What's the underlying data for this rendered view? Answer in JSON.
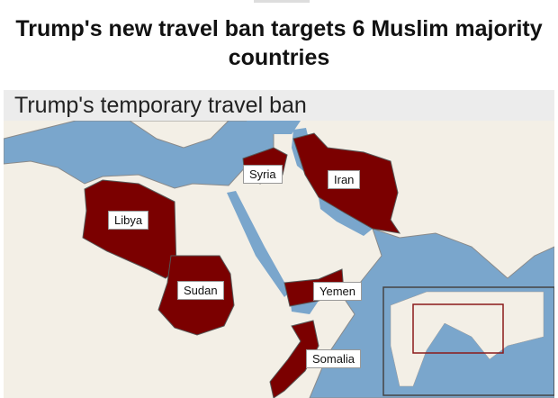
{
  "headline": "Trump's new travel ban targets 6 Muslim majority countries",
  "map": {
    "title": "Trump's temporary travel ban",
    "countries": [
      "Libya",
      "Sudan",
      "Syria",
      "Iran",
      "Yemen",
      "Somalia"
    ],
    "colors": {
      "highlight": "#7b0000",
      "water": "#7aa6cc",
      "land": "#f3efe6",
      "border": "#8a8a8a",
      "inset_frame": "#8b1a1a"
    },
    "inset": "world locator map"
  }
}
